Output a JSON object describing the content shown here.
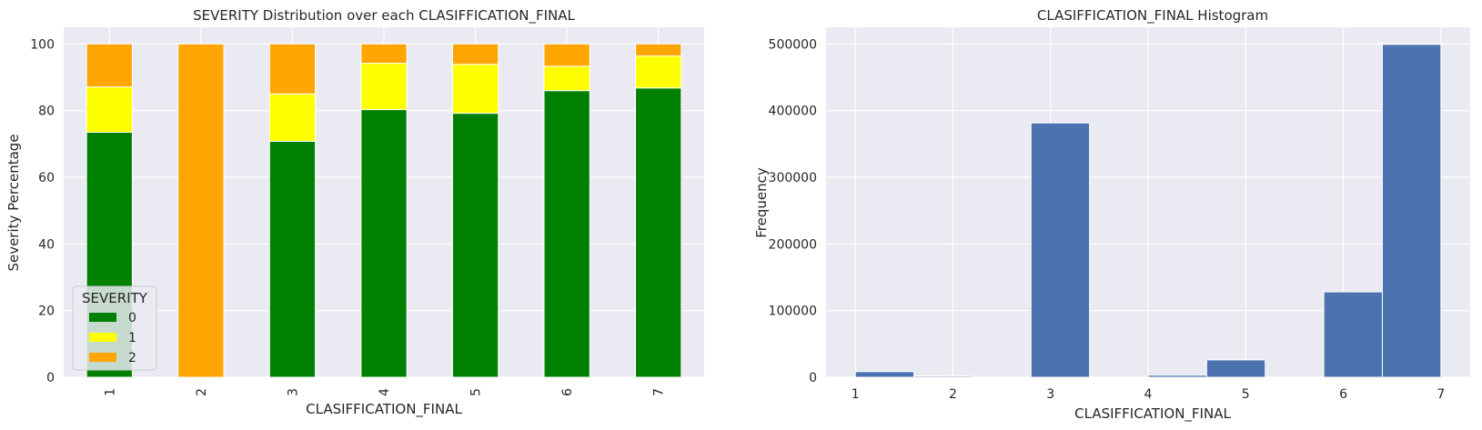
{
  "chart_data": [
    {
      "type": "bar",
      "stacked": true,
      "title": "SEVERITY Distribution over each CLASIFFICATION_FINAL",
      "xlabel": "CLASIFFICATION_FINAL",
      "ylabel": "Severity Percentage",
      "categories": [
        "1",
        "2",
        "3",
        "4",
        "5",
        "6",
        "7"
      ],
      "ylim": [
        0,
        105
      ],
      "yticks": [
        0,
        20,
        40,
        60,
        80,
        100
      ],
      "legend": {
        "title": "SEVERITY",
        "location": "lower-left"
      },
      "series": [
        {
          "name": "0",
          "color": "#008000",
          "values": [
            73.5,
            0,
            70.8,
            80.3,
            79.2,
            86.0,
            86.8
          ]
        },
        {
          "name": "1",
          "color": "#ffff00",
          "values": [
            13.6,
            0,
            14.2,
            13.9,
            14.7,
            7.3,
            9.6
          ]
        },
        {
          "name": "2",
          "color": "#ffa500",
          "values": [
            12.9,
            100,
            15.0,
            5.8,
            6.1,
            6.7,
            3.6
          ]
        }
      ]
    },
    {
      "type": "bar",
      "histogram": true,
      "title": "CLASIFFICATION_FINAL Histogram",
      "xlabel": "CLASIFFICATION_FINAL",
      "ylabel": "Frequency",
      "color": "#4c72b0",
      "xlim": [
        0.7,
        7.3
      ],
      "xticks": [
        1,
        2,
        3,
        4,
        5,
        6,
        7
      ],
      "ylim": [
        0,
        525000
      ],
      "yticks": [
        0,
        100000,
        200000,
        300000,
        400000,
        500000
      ],
      "bins": [
        {
          "start": 1.0,
          "end": 1.6,
          "value": 8500
        },
        {
          "start": 1.6,
          "end": 2.2,
          "value": 1800
        },
        {
          "start": 2.2,
          "end": 2.8,
          "value": 0
        },
        {
          "start": 2.8,
          "end": 3.4,
          "value": 381500
        },
        {
          "start": 3.4,
          "end": 4.0,
          "value": 0
        },
        {
          "start": 4.0,
          "end": 4.6,
          "value": 3100
        },
        {
          "start": 4.6,
          "end": 5.2,
          "value": 26100
        },
        {
          "start": 5.2,
          "end": 5.8,
          "value": 0
        },
        {
          "start": 5.8,
          "end": 6.4,
          "value": 128100
        },
        {
          "start": 6.4,
          "end": 7.0,
          "value": 499300
        }
      ]
    }
  ]
}
